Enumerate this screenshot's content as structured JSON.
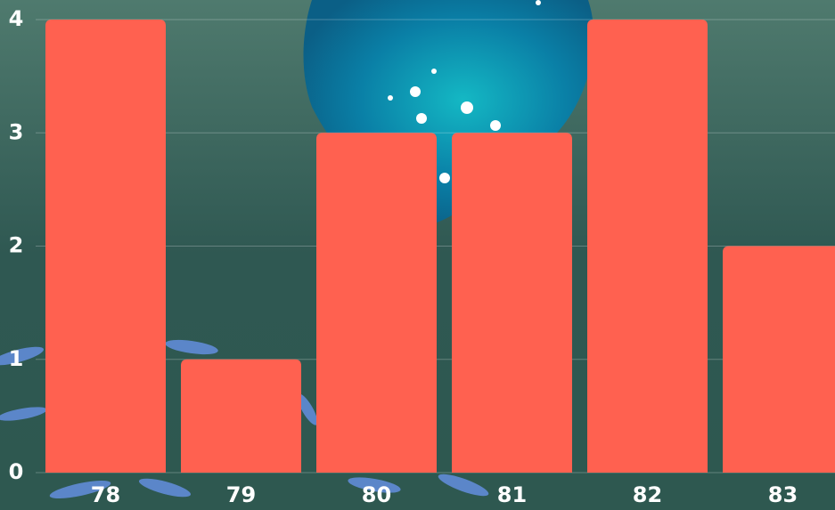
{
  "chart_data": {
    "type": "bar",
    "categories": [
      "78",
      "79",
      "80",
      "81",
      "82",
      "83"
    ],
    "values": [
      4,
      1,
      3,
      3,
      4,
      2
    ],
    "color": "#ff6150",
    "ylim": [
      0,
      4
    ],
    "yticks": [
      0,
      1,
      2,
      3,
      4
    ],
    "grid": true
  }
}
